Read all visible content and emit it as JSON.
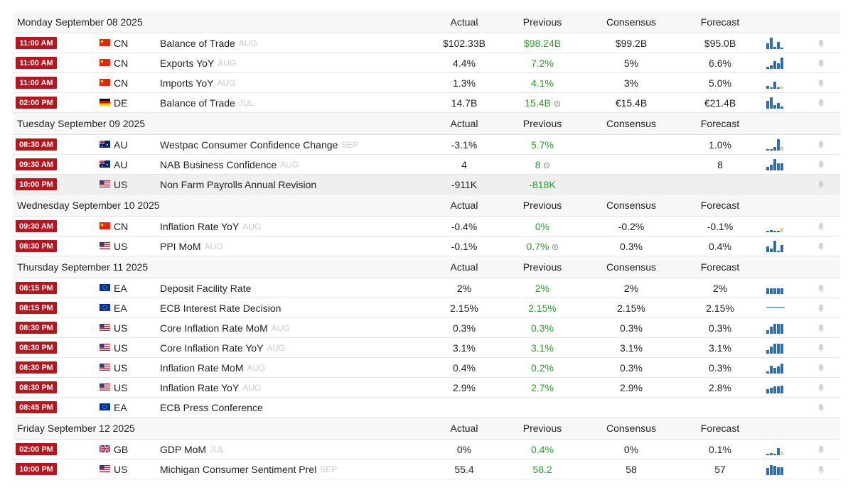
{
  "columns": {
    "actual": "Actual",
    "previous": "Previous",
    "consensus": "Consensus",
    "forecast": "Forecast"
  },
  "colors": {
    "time_badge": "#b8161f",
    "previous_text": "#2a9d2a",
    "spark_bar": "#2f6db3",
    "spark_forecast": "#e8cf84"
  },
  "days": [
    {
      "date": "Monday September 08 2025",
      "show_consensus": true,
      "events": [
        {
          "time": "11:00 AM",
          "country": "CN",
          "flag": "cn",
          "name": "Balance of Trade",
          "ref": "AUG",
          "actual": "$102.33B",
          "previous": "$98.24B",
          "consensus": "$99.2B",
          "forecast": "$95.0B",
          "revised": false,
          "spark": [
            0.5,
            1,
            0.2,
            0.6,
            0.1
          ],
          "spark_forecast": false
        },
        {
          "time": "11:00 AM",
          "country": "CN",
          "flag": "cn",
          "name": "Exports YoY",
          "ref": "AUG",
          "actual": "4.4%",
          "previous": "7.2%",
          "consensus": "5%",
          "forecast": "6.6%",
          "revised": false,
          "spark": [
            0.2,
            0.3,
            0.7,
            0.5,
            1
          ],
          "spark_forecast": false
        },
        {
          "time": "11:00 AM",
          "country": "CN",
          "flag": "cn",
          "name": "Imports YoY",
          "ref": "AUG",
          "actual": "1.3%",
          "previous": "4.1%",
          "consensus": "3%",
          "forecast": "5.0%",
          "revised": false,
          "spark": [
            0.25,
            0.1,
            0.6,
            0.1,
            0.2
          ],
          "spark_forecast": true
        },
        {
          "time": "02:00 PM",
          "country": "DE",
          "flag": "de",
          "name": "Balance of Trade",
          "ref": "JUL",
          "actual": "14.7B",
          "previous": "15.4B",
          "consensus": "€15.4B",
          "forecast": "€21.4B",
          "revised": true,
          "spark": [
            0.7,
            1,
            0.3,
            0.5,
            0.2
          ],
          "spark_forecast": false
        }
      ]
    },
    {
      "date": "Tuesday September 09 2025",
      "show_consensus": true,
      "events": [
        {
          "time": "08:30 AM",
          "country": "AU",
          "flag": "au",
          "name": "Westpac Consumer Confidence Change",
          "ref": "SEP",
          "actual": "-3.1%",
          "previous": "5.7%",
          "consensus": "",
          "forecast": "1.0%",
          "revised": false,
          "spark": [
            0.1,
            0.1,
            0.3,
            1,
            0.4
          ],
          "spark_forecast": true
        },
        {
          "time": "09:30 AM",
          "country": "AU",
          "flag": "au",
          "name": "NAB Business Confidence",
          "ref": "AUG",
          "actual": "4",
          "previous": "8",
          "consensus": "",
          "forecast": "8",
          "revised": true,
          "spark": [
            0.3,
            0.5,
            1,
            0.6,
            0.6
          ],
          "spark_forecast": false
        },
        {
          "time": "10:00 PM",
          "country": "US",
          "flag": "us",
          "name": "Non Farm Payrolls Annual Revision",
          "ref": "",
          "actual": "-911K",
          "previous": "-818K",
          "consensus": "",
          "forecast": "",
          "revised": false,
          "spark": [],
          "spark_forecast": false,
          "shaded": true
        }
      ]
    },
    {
      "date": "Wednesday September 10 2025",
      "show_consensus": true,
      "events": [
        {
          "time": "09:30 AM",
          "country": "CN",
          "flag": "cn",
          "name": "Inflation Rate YoY",
          "ref": "AUG",
          "actual": "-0.4%",
          "previous": "0%",
          "consensus": "-0.2%",
          "forecast": "-0.1%",
          "revised": false,
          "spark": [
            0.1,
            0.2,
            0.1,
            0.1,
            0.4
          ],
          "spark_forecast": true
        },
        {
          "time": "08:30 PM",
          "country": "US",
          "flag": "us",
          "name": "PPI MoM",
          "ref": "AUG",
          "actual": "-0.1%",
          "previous": "0.7%",
          "consensus": "0.3%",
          "forecast": "0.4%",
          "revised": true,
          "spark": [
            0.5,
            0.3,
            1,
            0.1,
            0.6
          ],
          "spark_forecast": false
        }
      ]
    },
    {
      "date": "Thursday September 11 2025",
      "show_consensus": true,
      "events": [
        {
          "time": "08:15 PM",
          "country": "EA",
          "flag": "eu",
          "name": "Deposit Facility Rate",
          "ref": "",
          "actual": "2%",
          "previous": "2%",
          "consensus": "2%",
          "forecast": "2%",
          "revised": false,
          "spark": [
            0.5,
            0.5,
            0.5,
            0.5,
            0.5
          ],
          "spark_forecast": false
        },
        {
          "time": "08:15 PM",
          "country": "EA",
          "flag": "eu",
          "name": "ECB Interest Rate Decision",
          "ref": "",
          "actual": "2.15%",
          "previous": "2.15%",
          "consensus": "2.15%",
          "forecast": "2.15%",
          "revised": false,
          "spark": [
            0.08,
            0.08,
            0.08,
            0.08,
            0.08
          ],
          "spark_forecast": false
        },
        {
          "time": "08:30 PM",
          "country": "US",
          "flag": "us",
          "name": "Core Inflation Rate MoM",
          "ref": "AUG",
          "actual": "0.3%",
          "previous": "0.3%",
          "consensus": "0.3%",
          "forecast": "0.3%",
          "revised": false,
          "spark": [
            0.3,
            0.6,
            0.9,
            0.9,
            0.9
          ],
          "spark_forecast": false
        },
        {
          "time": "08:30 PM",
          "country": "US",
          "flag": "us",
          "name": "Core Inflation Rate YoY",
          "ref": "AUG",
          "actual": "3.1%",
          "previous": "3.1%",
          "consensus": "3.1%",
          "forecast": "3.1%",
          "revised": false,
          "spark": [
            0.3,
            0.6,
            0.9,
            0.85,
            0.85
          ],
          "spark_forecast": false
        },
        {
          "time": "08:30 PM",
          "country": "US",
          "flag": "us",
          "name": "Inflation Rate MoM",
          "ref": "AUG",
          "actual": "0.4%",
          "previous": "0.2%",
          "consensus": "0.3%",
          "forecast": "0.3%",
          "revised": false,
          "spark": [
            0.2,
            0.7,
            0.5,
            0.6,
            0.9
          ],
          "spark_forecast": false
        },
        {
          "time": "08:30 PM",
          "country": "US",
          "flag": "us",
          "name": "Inflation Rate YoY",
          "ref": "AUG",
          "actual": "2.9%",
          "previous": "2.7%",
          "consensus": "2.9%",
          "forecast": "2.8%",
          "revised": false,
          "spark": [
            0.4,
            0.5,
            0.6,
            0.6,
            0.7
          ],
          "spark_forecast": false
        },
        {
          "time": "08:45 PM",
          "country": "EA",
          "flag": "eu",
          "name": "ECB Press Conference",
          "ref": "",
          "actual": "",
          "previous": "",
          "consensus": "",
          "forecast": "",
          "revised": false,
          "spark": [],
          "spark_forecast": false
        }
      ]
    },
    {
      "date": "Friday September 12 2025",
      "show_consensus": true,
      "events": [
        {
          "time": "02:00 PM",
          "country": "GB",
          "flag": "gb",
          "name": "GDP MoM",
          "ref": "JUL",
          "actual": "0%",
          "previous": "0.4%",
          "consensus": "0%",
          "forecast": "0.1%",
          "revised": false,
          "spark": [
            0.1,
            0.2,
            0.1,
            0.6,
            0.3
          ],
          "spark_forecast": true
        },
        {
          "time": "10:00 PM",
          "country": "US",
          "flag": "us",
          "name": "Michigan Consumer Sentiment Prel",
          "ref": "SEP",
          "actual": "55.4",
          "previous": "58.2",
          "consensus": "58",
          "forecast": "57",
          "revised": false,
          "spark": [
            0.6,
            0.9,
            0.8,
            0.7,
            0.7
          ],
          "spark_forecast": false
        }
      ]
    }
  ]
}
